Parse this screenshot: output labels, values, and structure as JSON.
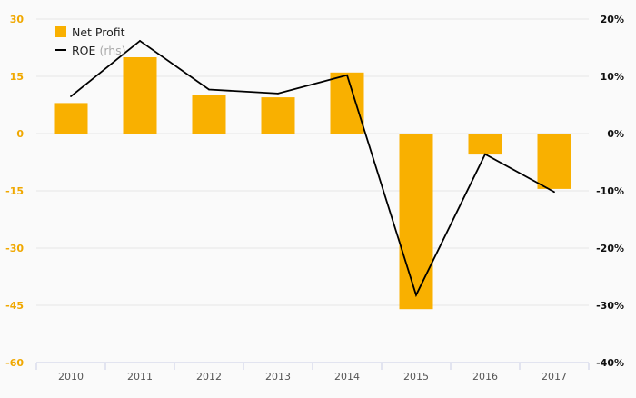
{
  "chart_data": {
    "type": "bar",
    "categories": [
      "2010",
      "2011",
      "2012",
      "2013",
      "2014",
      "2015",
      "2016",
      "2017"
    ],
    "series": [
      {
        "name": "Net Profit",
        "type": "bar",
        "axis": "left",
        "values": [
          8,
          20,
          10,
          9.5,
          16,
          -46,
          -5.5,
          -14.5
        ]
      },
      {
        "name": "ROE",
        "suffix": "(rhs)",
        "type": "line",
        "axis": "right",
        "values": [
          6.5,
          16.2,
          7.7,
          7.0,
          10.2,
          -28.2,
          -3.6,
          -10.2
        ]
      }
    ],
    "left_axis": {
      "ylim": [
        -60,
        30
      ],
      "ticks": [
        30,
        15,
        0,
        -15,
        -30,
        -45,
        -60
      ],
      "tick_labels": [
        "30",
        "15",
        "0",
        "-15",
        "-30",
        "-45",
        "-60"
      ]
    },
    "right_axis": {
      "ylim": [
        -40,
        20
      ],
      "ticks": [
        20,
        10,
        0,
        -10,
        -20,
        -30,
        -40
      ],
      "tick_labels": [
        "20%",
        "10%",
        "0%",
        "-10%",
        "-20%",
        "-30%",
        "-40%"
      ]
    },
    "grid": true,
    "legend_position": "top-left",
    "colors": {
      "bar": "#F9B000",
      "line": "#000000",
      "left_tick": "#F0A800",
      "right_tick": "#111111",
      "category_tick": "#555555",
      "legend_suffix": "#aaaaaa",
      "grid": "#e6e6e6",
      "x_axis": "#c9cfe6"
    }
  }
}
